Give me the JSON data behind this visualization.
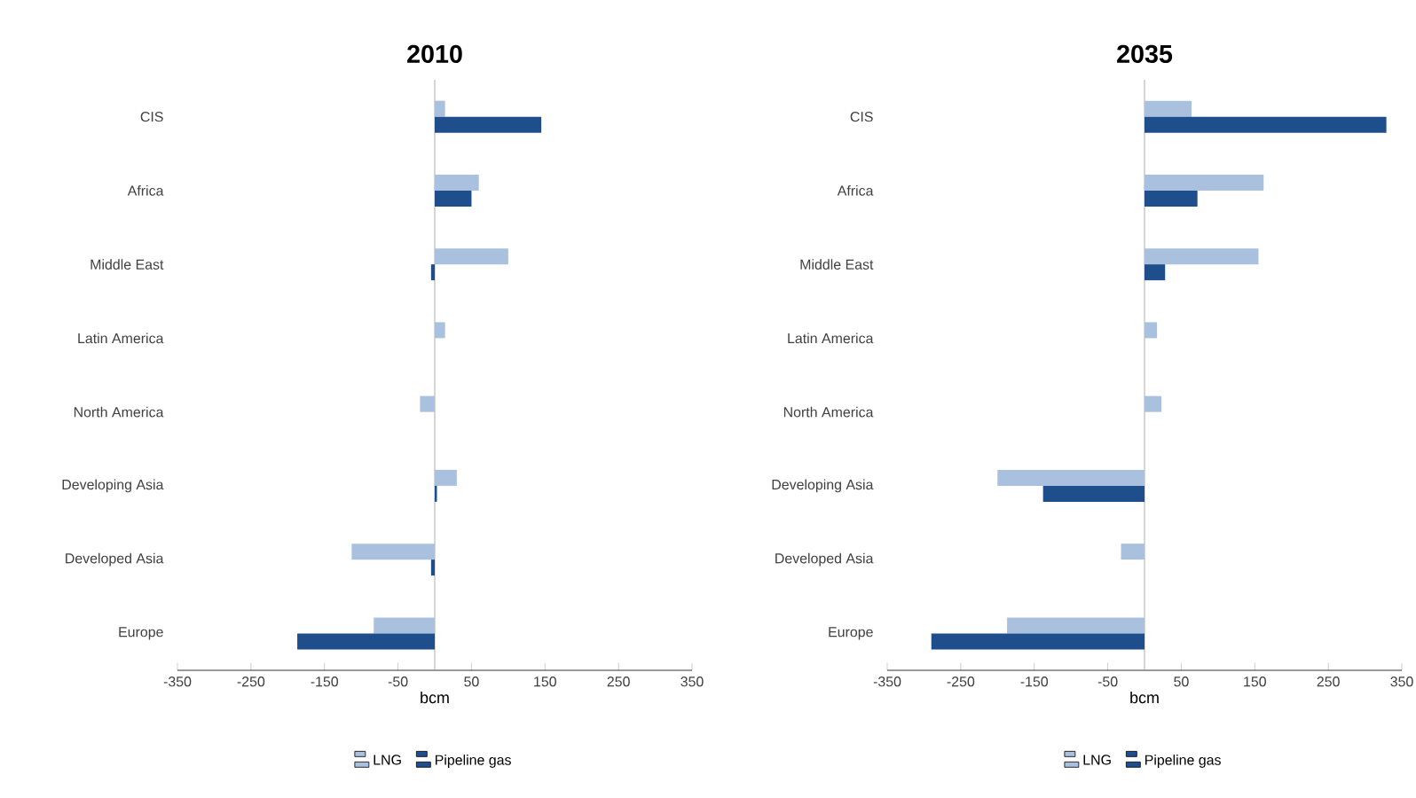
{
  "chart_data": [
    {
      "type": "bar",
      "orientation": "horizontal",
      "title": "2010",
      "xlabel": "bcm",
      "categories": [
        "CIS",
        "Africa",
        "Middle East",
        "Latin America",
        "North America",
        "Developing Asia",
        "Developed Asia",
        "Europe"
      ],
      "series": [
        {
          "name": "LNG",
          "color": "#a9c1de",
          "values": [
            14,
            60,
            100,
            14,
            -20,
            30,
            -113,
            -83
          ]
        },
        {
          "name": "Pipeline gas",
          "color": "#1f4e8c",
          "values": [
            145,
            50,
            -5,
            0,
            0,
            3,
            -5,
            -187
          ]
        }
      ],
      "xlim": [
        -350,
        350
      ],
      "xticks": [
        -350,
        -250,
        -150,
        -50,
        50,
        150,
        250,
        350
      ],
      "legend": "bottom"
    },
    {
      "type": "bar",
      "orientation": "horizontal",
      "title": "2035",
      "xlabel": "bcm",
      "categories": [
        "CIS",
        "Africa",
        "Middle East",
        "Latin America",
        "North America",
        "Developing Asia",
        "Developed Asia",
        "Europe"
      ],
      "series": [
        {
          "name": "LNG",
          "color": "#a9c1de",
          "values": [
            64,
            162,
            155,
            17,
            23,
            -200,
            -32,
            -187
          ]
        },
        {
          "name": "Pipeline gas",
          "color": "#1f4e8c",
          "values": [
            329,
            72,
            28,
            0,
            0,
            -138,
            0,
            -290
          ]
        }
      ],
      "xlim": [
        -350,
        350
      ],
      "xticks": [
        -350,
        -250,
        -150,
        -50,
        50,
        150,
        250,
        350
      ],
      "legend": "bottom"
    }
  ]
}
